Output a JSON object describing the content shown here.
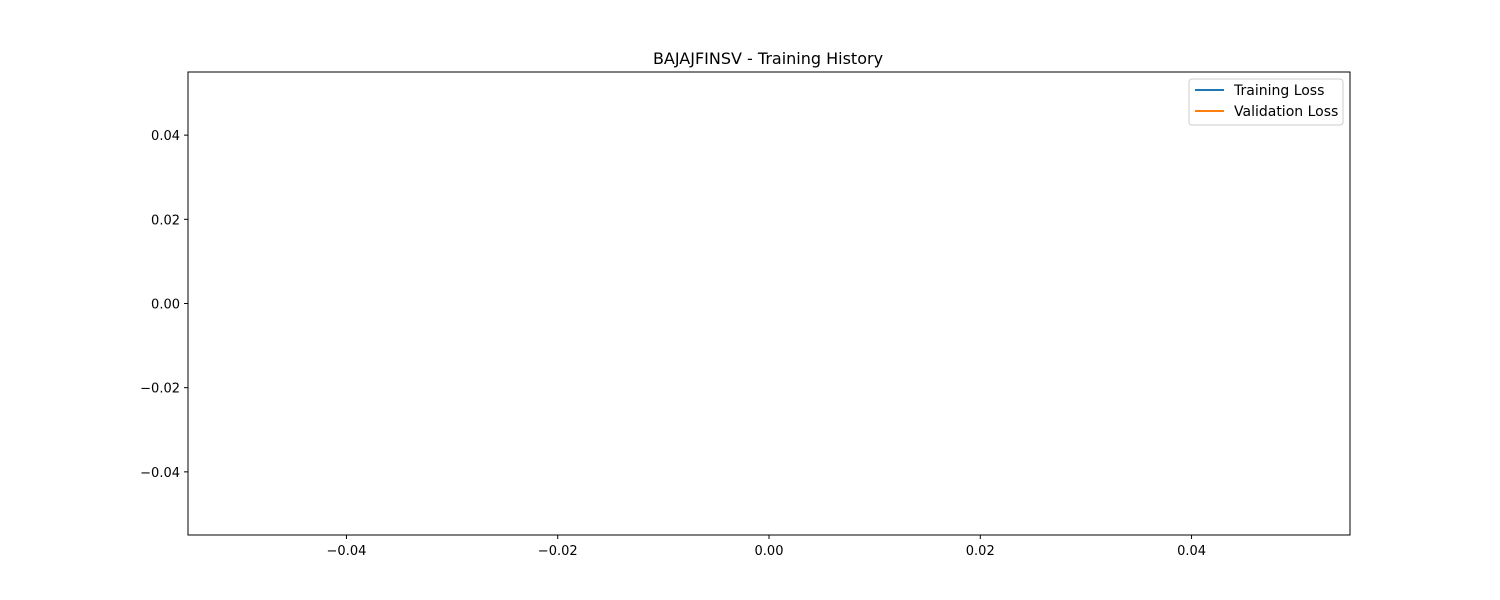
{
  "chart_data": {
    "type": "line",
    "title": "BAJAJFINSV - Training History",
    "xlabel": "",
    "ylabel": "",
    "xlim": [
      -0.055,
      0.055
    ],
    "ylim": [
      -0.055,
      0.055
    ],
    "x_ticks": [
      -0.04,
      -0.02,
      0.0,
      0.02,
      0.04
    ],
    "x_tick_labels": [
      "−0.04",
      "−0.02",
      "0.00",
      "0.02",
      "0.04"
    ],
    "y_ticks": [
      0.04,
      0.02,
      0.0,
      -0.02,
      -0.04
    ],
    "y_tick_labels": [
      "0.04",
      "0.02",
      "0.00",
      "−0.02",
      "−0.04"
    ],
    "grid": false,
    "legend_position": "top-right",
    "series": [
      {
        "name": "Training Loss",
        "color": "#1f77b4",
        "x": [],
        "y": []
      },
      {
        "name": "Validation Loss",
        "color": "#ff7f0e",
        "x": [],
        "y": []
      }
    ]
  }
}
